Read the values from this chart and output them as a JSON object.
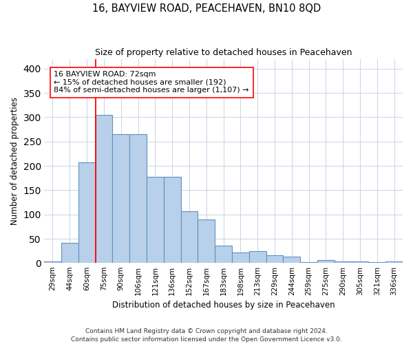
{
  "title": "16, BAYVIEW ROAD, PEACEHAVEN, BN10 8QD",
  "subtitle": "Size of property relative to detached houses in Peacehaven",
  "xlabel": "Distribution of detached houses by size in Peacehaven",
  "ylabel": "Number of detached properties",
  "footer_line1": "Contains HM Land Registry data © Crown copyright and database right 2024.",
  "footer_line2": "Contains public sector information licensed under the Open Government Licence v3.0.",
  "categories": [
    "29sqm",
    "44sqm",
    "60sqm",
    "75sqm",
    "90sqm",
    "106sqm",
    "121sqm",
    "136sqm",
    "152sqm",
    "167sqm",
    "183sqm",
    "198sqm",
    "213sqm",
    "229sqm",
    "244sqm",
    "259sqm",
    "275sqm",
    "290sqm",
    "305sqm",
    "321sqm",
    "336sqm"
  ],
  "values": [
    3,
    42,
    207,
    305,
    265,
    265,
    178,
    178,
    106,
    90,
    36,
    22,
    25,
    16,
    13,
    2,
    6,
    3,
    3,
    2,
    3
  ],
  "bar_color": "#b8d0ea",
  "bar_edge_color": "#6090c0",
  "property_label": "16 BAYVIEW ROAD: 72sqm",
  "pct_smaller": 15,
  "count_smaller": 192,
  "pct_larger_semi": 84,
  "count_larger_semi": 1107,
  "vline_x_index": 2.5,
  "ylim": [
    0,
    420
  ],
  "yticks": [
    0,
    50,
    100,
    150,
    200,
    250,
    300,
    350,
    400
  ]
}
